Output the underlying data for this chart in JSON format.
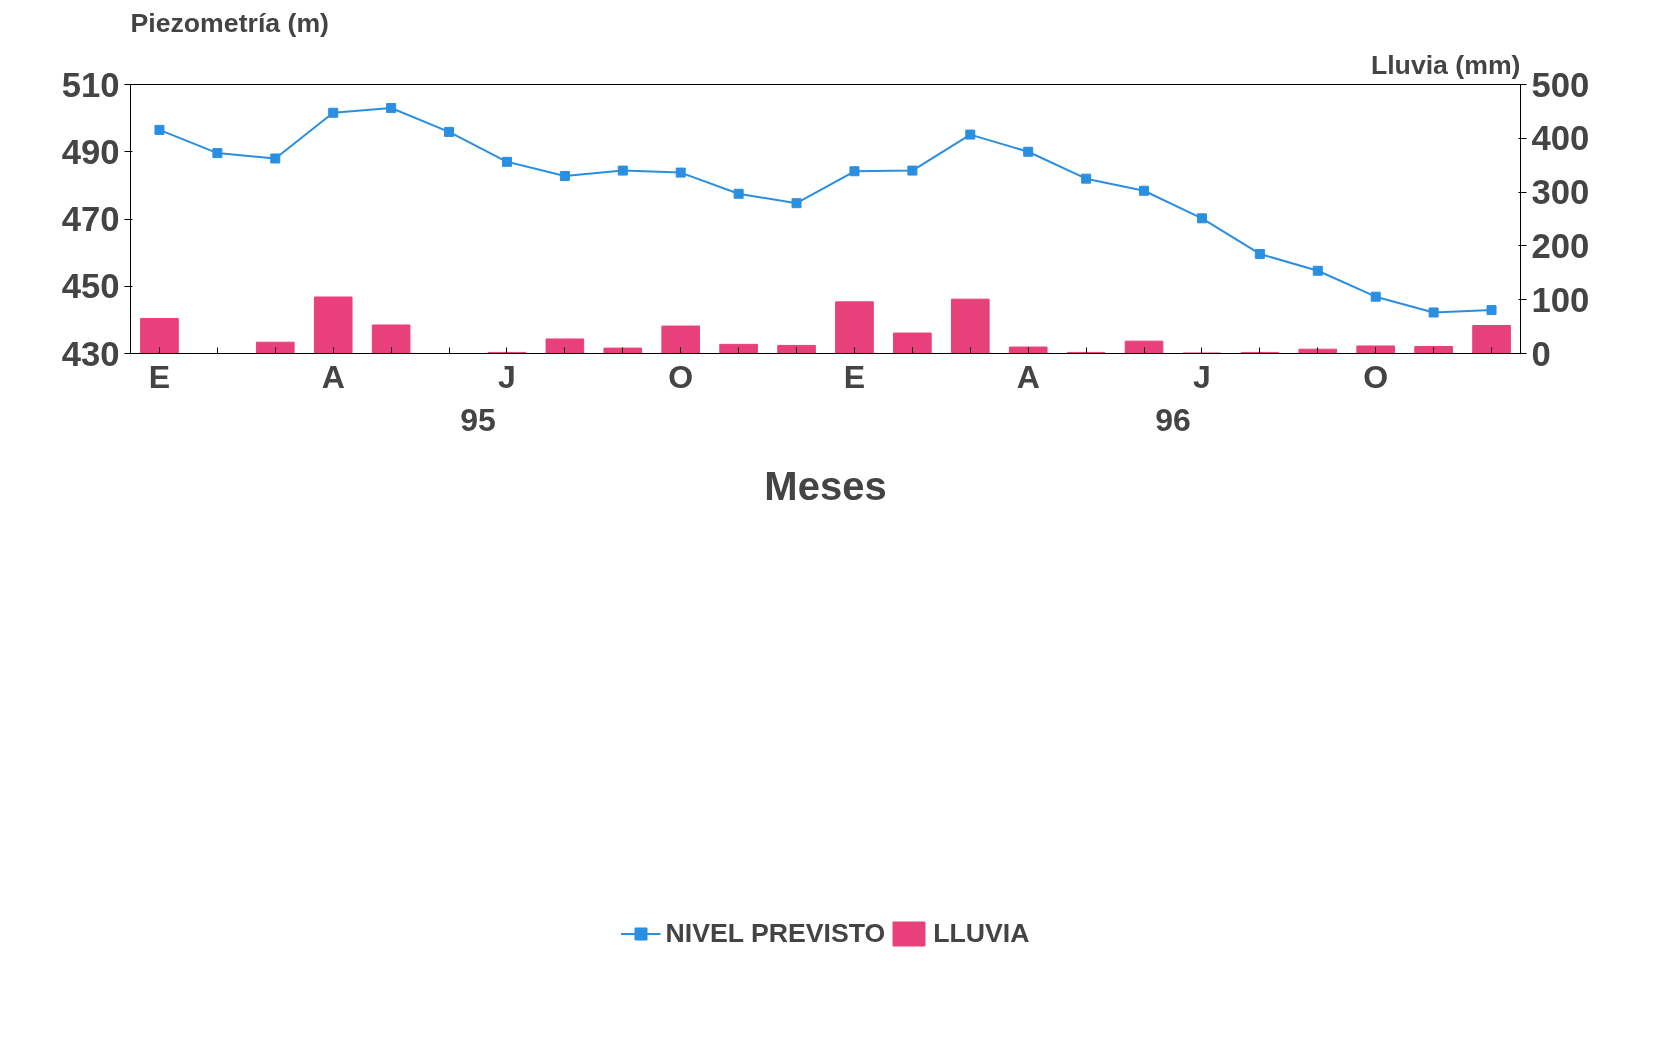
{
  "chart_data": {
    "type": "bar",
    "xlabel": "Meses",
    "ylabel": "Piezometría (m)",
    "y2label": "Lluvia (mm)",
    "categories": [
      "E",
      null,
      null,
      "A",
      null,
      null,
      "J",
      null,
      null,
      "O",
      null,
      null,
      "E",
      null,
      null,
      "A",
      null,
      null,
      "J",
      null,
      null,
      "O",
      null,
      null
    ],
    "annotations": [
      "95",
      "96"
    ],
    "series": [
      {
        "name": "NIVEL PREVISTO",
        "type": "line",
        "color": "#2a8fe0",
        "marker": "square",
        "values": [
          496.5,
          489.6,
          488.0,
          501.6,
          503.0,
          495.9,
          487.0,
          482.8,
          484.4,
          483.8,
          477.5,
          474.7,
          484.2,
          484.4,
          495.1,
          490.0,
          482.0,
          478.4,
          470.2,
          459.6,
          454.6,
          446.9,
          442.2,
          442.9
        ]
      },
      {
        "name": "LLUVIA",
        "axis": "y2",
        "color": "#e8407a",
        "values": [
          65,
          0,
          21,
          105,
          53,
          0,
          2,
          27,
          10,
          51,
          17,
          15,
          96,
          38,
          101,
          12,
          2,
          23,
          1,
          2,
          8,
          14,
          13,
          52
        ]
      }
    ],
    "ylim": [
      430,
      510
    ],
    "yticks": [
      430,
      450,
      470,
      490,
      510
    ],
    "y2lim": [
      0,
      500
    ],
    "y2ticks": [
      0,
      100,
      200,
      300,
      400,
      500
    ],
    "grid": false,
    "legend": "bottom"
  }
}
